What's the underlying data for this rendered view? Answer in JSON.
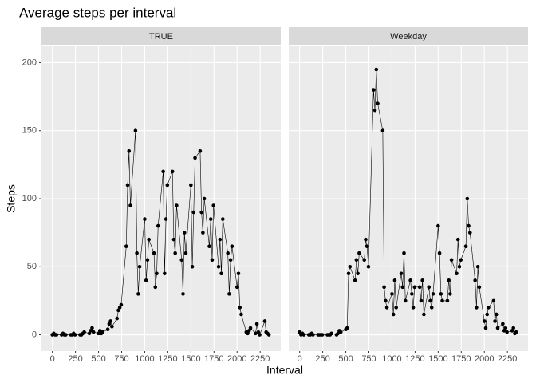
{
  "title": "Average steps per interval",
  "x_label": "Interval",
  "y_label": "Steps",
  "chart_data": [
    {
      "type": "line",
      "facet": "TRUE",
      "color": "#000000",
      "grid": true,
      "x": [
        0,
        15,
        30,
        45,
        100,
        115,
        130,
        145,
        200,
        215,
        230,
        245,
        300,
        315,
        330,
        345,
        400,
        415,
        430,
        445,
        500,
        515,
        530,
        545,
        600,
        615,
        630,
        645,
        700,
        715,
        730,
        745,
        800,
        815,
        830,
        845,
        900,
        915,
        930,
        945,
        1000,
        1015,
        1030,
        1045,
        1100,
        1115,
        1130,
        1145,
        1200,
        1215,
        1230,
        1245,
        1300,
        1315,
        1330,
        1345,
        1400,
        1415,
        1430,
        1445,
        1500,
        1515,
        1530,
        1545,
        1600,
        1615,
        1630,
        1645,
        1700,
        1715,
        1730,
        1745,
        1800,
        1815,
        1830,
        1845,
        1900,
        1915,
        1930,
        1945,
        2000,
        2015,
        2030,
        2045,
        2100,
        2115,
        2130,
        2145,
        2200,
        2215,
        2230,
        2245,
        2300,
        2315,
        2330,
        2345
      ],
      "values": [
        0,
        1,
        0,
        0,
        0,
        1,
        0,
        0,
        0,
        0,
        1,
        0,
        0,
        0,
        1,
        2,
        1,
        3,
        5,
        2,
        1,
        3,
        1,
        2,
        4,
        8,
        10,
        6,
        12,
        18,
        20,
        22,
        65,
        110,
        135,
        95,
        150,
        60,
        30,
        50,
        85,
        40,
        55,
        70,
        60,
        35,
        45,
        80,
        120,
        45,
        85,
        110,
        120,
        70,
        60,
        95,
        55,
        30,
        75,
        60,
        110,
        50,
        90,
        130,
        135,
        90,
        75,
        100,
        65,
        85,
        55,
        95,
        50,
        70,
        45,
        85,
        60,
        30,
        55,
        65,
        35,
        45,
        20,
        15,
        2,
        1,
        3,
        5,
        1,
        8,
        2,
        0,
        10,
        2,
        1,
        0
      ],
      "xlim": [
        -118,
        2473
      ],
      "ylim": [
        -12,
        212
      ],
      "xticks": [
        0,
        250,
        500,
        750,
        1000,
        1250,
        1500,
        1750,
        2000,
        2250
      ],
      "yticks": [
        0,
        50,
        100,
        150,
        200
      ]
    },
    {
      "type": "line",
      "facet": "Weekday",
      "color": "#000000",
      "grid": true,
      "x": [
        0,
        15,
        30,
        45,
        100,
        115,
        130,
        145,
        200,
        215,
        230,
        245,
        300,
        315,
        330,
        345,
        400,
        415,
        430,
        445,
        500,
        515,
        530,
        545,
        600,
        615,
        630,
        645,
        700,
        715,
        730,
        745,
        800,
        815,
        830,
        845,
        900,
        915,
        930,
        945,
        1000,
        1015,
        1030,
        1045,
        1100,
        1115,
        1130,
        1145,
        1200,
        1215,
        1230,
        1245,
        1300,
        1315,
        1330,
        1345,
        1400,
        1415,
        1430,
        1445,
        1500,
        1515,
        1530,
        1545,
        1600,
        1615,
        1630,
        1645,
        1700,
        1715,
        1730,
        1745,
        1800,
        1815,
        1830,
        1845,
        1900,
        1915,
        1930,
        1945,
        2000,
        2015,
        2030,
        2045,
        2100,
        2115,
        2130,
        2145,
        2200,
        2215,
        2230,
        2245,
        2300,
        2315,
        2330,
        2345
      ],
      "values": [
        2,
        0,
        1,
        0,
        0,
        0,
        1,
        0,
        0,
        0,
        0,
        0,
        0,
        0,
        0,
        1,
        0,
        1,
        3,
        2,
        4,
        5,
        45,
        50,
        40,
        55,
        45,
        60,
        55,
        70,
        65,
        50,
        180,
        165,
        195,
        170,
        150,
        35,
        25,
        20,
        30,
        15,
        40,
        20,
        45,
        35,
        60,
        25,
        40,
        30,
        20,
        35,
        35,
        25,
        40,
        15,
        35,
        25,
        20,
        30,
        80,
        60,
        30,
        25,
        25,
        40,
        30,
        55,
        45,
        70,
        50,
        55,
        65,
        100,
        80,
        75,
        40,
        20,
        50,
        35,
        10,
        5,
        15,
        20,
        25,
        10,
        15,
        5,
        8,
        3,
        5,
        2,
        3,
        5,
        1,
        2
      ],
      "xlim": [
        -118,
        2473
      ],
      "ylim": [
        -12,
        212
      ],
      "xticks": [
        0,
        250,
        500,
        750,
        1000,
        1250,
        1500,
        1750,
        2000,
        2250
      ],
      "yticks": [
        0,
        50,
        100,
        150,
        200
      ]
    }
  ]
}
